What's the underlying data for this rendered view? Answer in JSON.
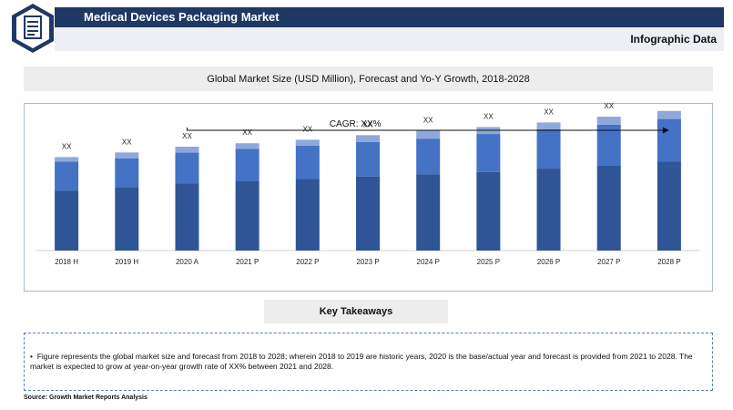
{
  "header": {
    "title": "Medical Devices Packaging Market",
    "subtitle": "Infographic Data"
  },
  "icon": "document-icon",
  "chart_data": {
    "type": "bar",
    "stacked": true,
    "title": "Global Market Size (USD Million), Forecast and Yo-Y Growth, 2018-2028",
    "categories": [
      "2018 H",
      "2019 H",
      "2020 A",
      "2021 P",
      "2022 P",
      "2023 P",
      "2024 P",
      "2025 P",
      "2026 P",
      "2027 P",
      "2028 P"
    ],
    "series": [
      {
        "values": [
          52,
          55,
          58,
          60,
          62,
          64,
          66,
          68,
          71,
          74,
          77
        ]
      },
      {
        "values": [
          25,
          25,
          27,
          28,
          29,
          30,
          31,
          33,
          34,
          35,
          37
        ]
      },
      {
        "values": [
          4,
          5,
          5,
          5,
          5,
          6,
          7,
          6,
          6,
          7,
          7
        ]
      }
    ],
    "data_labels": [
      "XX",
      "XX",
      "XX",
      "XX",
      "XX",
      "XX",
      "XX",
      "XX",
      "XX",
      "XX",
      "XX"
    ],
    "cagr_label": "CAGR: XX%",
    "ylim": [
      0,
      120
    ],
    "colors": [
      "#2f5597",
      "#4472c4",
      "#8fa8dc"
    ],
    "grid": false,
    "legend": "none"
  },
  "takeaways": {
    "title": "Key Takeaways",
    "bullet": "•",
    "text": "Figure represents the global market size and forecast from 2018 to 2028; wherein 2018 to 2019 are historic years, 2020 is the base/actual year and forecast is provided from 2021 to 2028. The market is expected to grow at year-on-year growth rate of XX% between 2021 and 2028."
  },
  "source": "Source: Growth Market Reports Analysis"
}
